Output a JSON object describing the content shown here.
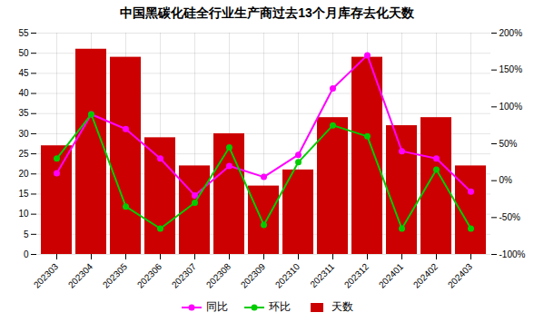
{
  "chart_data": {
    "type": "bar",
    "title": "中国黑碳化硅全行业生产商过去13个月库存去化天数",
    "categories": [
      "202303",
      "202304",
      "202305",
      "202306",
      "202307",
      "202308",
      "202309",
      "202310",
      "202311",
      "202312",
      "202401",
      "202402",
      "202403"
    ],
    "series": [
      {
        "name": "同比",
        "type": "line",
        "axis": "y2",
        "color": "#ff00ff",
        "marker": "circle",
        "values": [
          10,
          90,
          70,
          30,
          -20,
          20,
          5,
          35,
          125,
          170,
          40,
          30,
          -15
        ]
      },
      {
        "name": "环比",
        "type": "line",
        "axis": "y2",
        "color": "#00cc00",
        "marker": "circle",
        "values": [
          30,
          90,
          -35,
          -65,
          -30,
          45,
          -60,
          25,
          75,
          60,
          -65,
          15,
          -65
        ]
      },
      {
        "name": "天数",
        "type": "bar",
        "color": "#cc0000",
        "values": [
          27,
          51,
          49,
          29,
          22,
          30,
          17,
          21,
          34,
          49,
          32,
          34,
          22
        ]
      }
    ],
    "ylim": [
      0,
      55
    ],
    "yticks": [
      0,
      5,
      10,
      15,
      20,
      25,
      30,
      35,
      40,
      45,
      50,
      55
    ],
    "y2lim": [
      -100,
      200
    ],
    "y2ticks": [
      {
        "value": -100,
        "label": "-100%"
      },
      {
        "value": -50,
        "label": "-50%"
      },
      {
        "value": 0,
        "label": "0%"
      },
      {
        "value": 50,
        "label": "50%"
      },
      {
        "value": 100,
        "label": "100%"
      },
      {
        "value": 150,
        "label": "150%"
      },
      {
        "value": 200,
        "label": "200%"
      }
    ],
    "grid": true,
    "legend": "bottom"
  }
}
